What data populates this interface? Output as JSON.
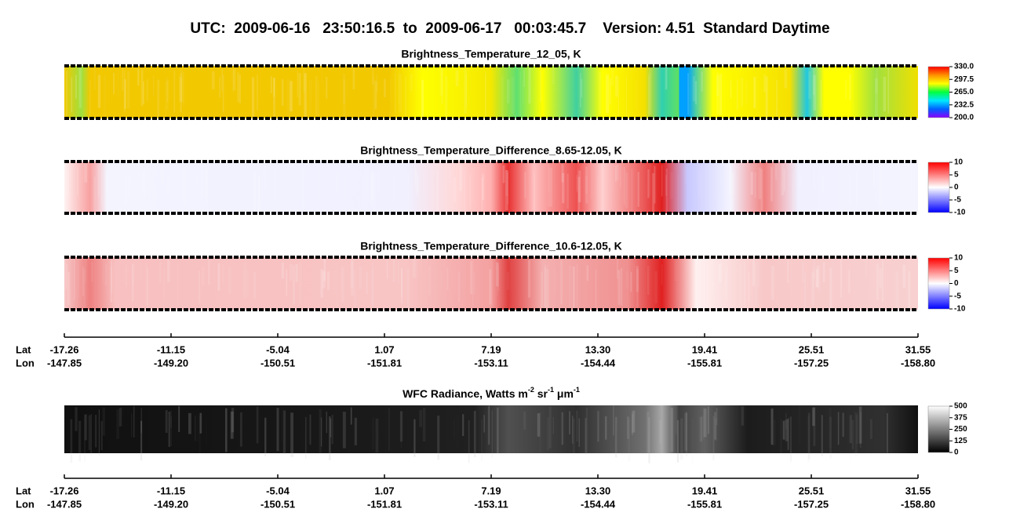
{
  "title": "UTC:  2009-06-16   23:50:16.5  to  2009-06-17   00:03:45.7    Version: 4.51  Standard Daytime",
  "chart_data": [
    {
      "type": "heatmap",
      "title": "Brightness_Temperature_12_05, K",
      "colormap": [
        "#8a00ff",
        "#0060ff",
        "#00e8ff",
        "#00ff40",
        "#ffff00",
        "#ff9000",
        "#ff0000"
      ],
      "clim": [
        200,
        330
      ],
      "cticks": [
        {
          "value": 330,
          "label": "330.0"
        },
        297.5,
        {
          "value": 265,
          "label": "265.0"
        },
        232.5,
        {
          "value": 200,
          "label": "200.0"
        }
      ]
    },
    {
      "type": "heatmap",
      "title": "Brightness_Temperature_Difference_8.65-12.05, K",
      "colormap": [
        "#0000ff",
        "#ffffff",
        "#ff0000"
      ],
      "clim": [
        -10,
        10
      ],
      "cticks": [
        10,
        5,
        0,
        -5,
        -10
      ]
    },
    {
      "type": "heatmap",
      "title": "Brightness_Temperature_Difference_10.6-12.05, K",
      "colormap": [
        "#0000ff",
        "#ffffff",
        "#ff0000"
      ],
      "clim": [
        -10,
        10
      ],
      "cticks": [
        10,
        5,
        0,
        -5,
        -10
      ]
    },
    {
      "type": "heatmap",
      "title_parts": [
        "WFC Radiance, Watts m",
        "-2",
        " sr",
        "-1",
        " μm",
        "-1"
      ],
      "colormap": [
        "#000000",
        "#ffffff"
      ],
      "clim": [
        0,
        500
      ],
      "cticks": [
        500,
        375,
        250,
        125,
        0
      ]
    }
  ],
  "axes": [
    {
      "row_labels": [
        "Lat",
        "Lon"
      ],
      "lat": [
        -17.26,
        -11.15,
        -5.04,
        1.07,
        7.19,
        {
          "value": 13.3,
          "label": "13.30"
        },
        19.41,
        25.51,
        31.55
      ],
      "lon": [
        -147.85,
        {
          "value": -149.2,
          "label": "-149.20"
        },
        -150.51,
        -151.81,
        -153.11,
        -154.44,
        -155.81,
        -157.25,
        {
          "value": -158.8,
          "label": "-158.80"
        }
      ]
    },
    {
      "row_labels": [
        "Lat",
        "Lon"
      ],
      "lat": [
        -17.26,
        -11.15,
        -5.04,
        1.07,
        7.19,
        {
          "value": 13.3,
          "label": "13.30"
        },
        19.41,
        25.51,
        31.55
      ],
      "lon": [
        -147.85,
        {
          "value": -149.2,
          "label": "-149.20"
        },
        -150.51,
        -151.81,
        -153.11,
        -154.44,
        -155.81,
        -157.25,
        {
          "value": -158.8,
          "label": "-158.80"
        }
      ]
    }
  ]
}
